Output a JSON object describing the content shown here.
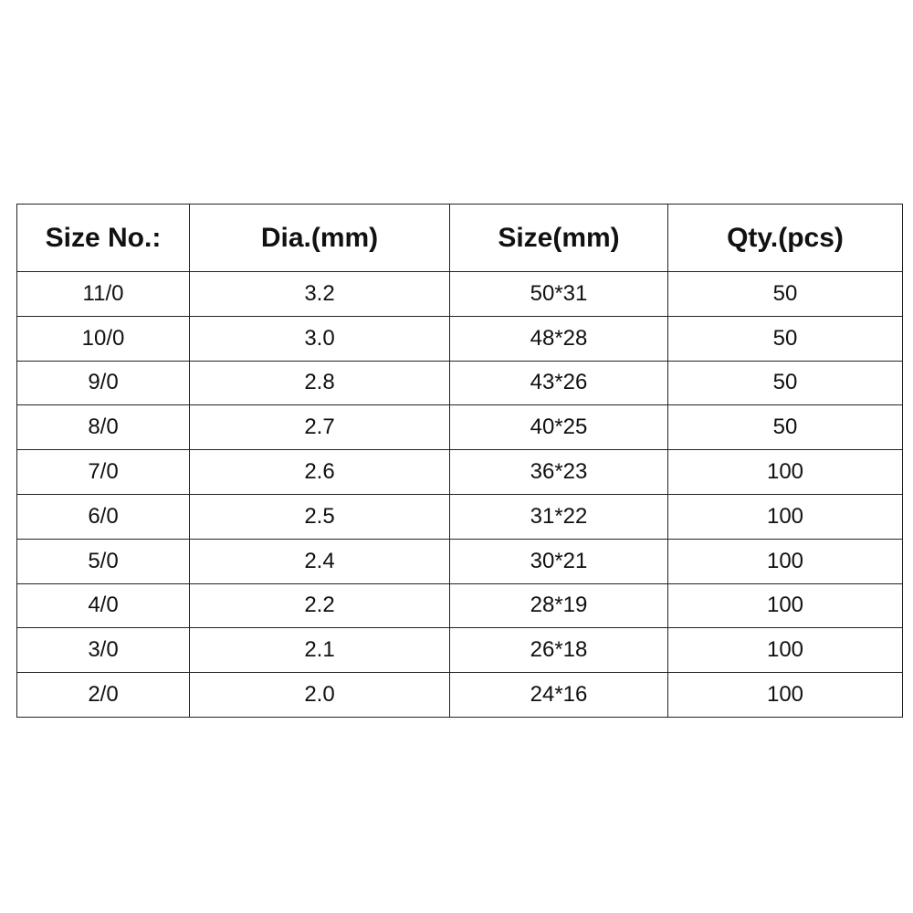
{
  "table": {
    "header": [
      "Size No.:",
      "Dia.(mm)",
      "Size(mm)",
      "Qty.(pcs)"
    ],
    "rows": [
      [
        "11/0",
        "3.2",
        "50*31",
        "50"
      ],
      [
        "10/0",
        "3.0",
        "48*28",
        "50"
      ],
      [
        "9/0",
        "2.8",
        "43*26",
        "50"
      ],
      [
        "8/0",
        "2.7",
        "40*25",
        "50"
      ],
      [
        "7/0",
        "2.6",
        "36*23",
        "100"
      ],
      [
        "6/0",
        "2.5",
        "31*22",
        "100"
      ],
      [
        "5/0",
        "2.4",
        "30*21",
        "100"
      ],
      [
        "4/0",
        "2.2",
        "28*19",
        "100"
      ],
      [
        "3/0",
        "2.1",
        "26*18",
        "100"
      ],
      [
        "2/0",
        "2.0",
        "24*16",
        "100"
      ]
    ]
  }
}
